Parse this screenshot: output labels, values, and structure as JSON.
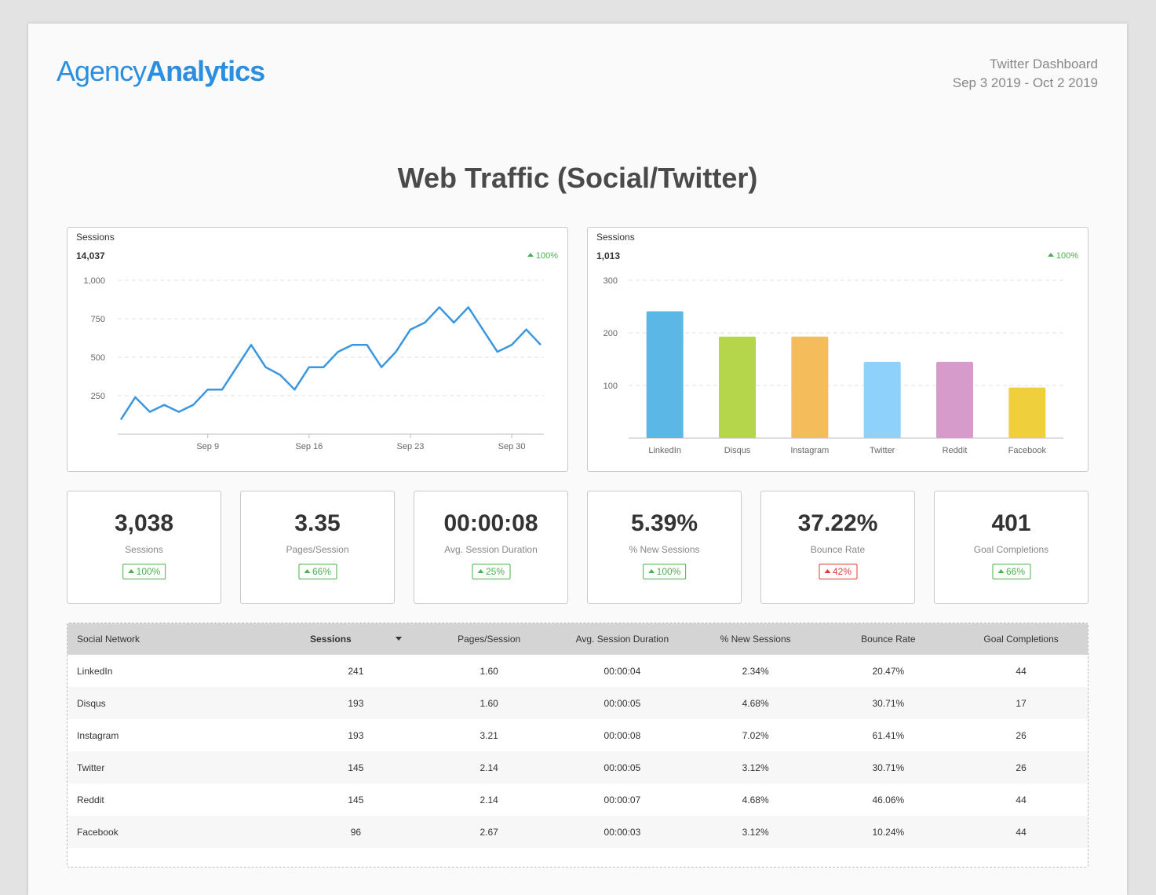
{
  "header": {
    "logo_part1": "Agency",
    "logo_part2": "Analytics",
    "dashboard_name": "Twitter Dashboard",
    "date_range": "Sep 3 2019 - Oct 2 2019"
  },
  "page_title": "Web Traffic (Social/Twitter)",
  "line_card": {
    "label": "Sessions",
    "total": "14,037",
    "change": "100%"
  },
  "bar_card": {
    "label": "Sessions",
    "total": "1,013",
    "change": "100%"
  },
  "chart_data": [
    {
      "type": "line",
      "x": [
        "Sep 3",
        "Sep 4",
        "Sep 5",
        "Sep 6",
        "Sep 7",
        "Sep 8",
        "Sep 9",
        "Sep 10",
        "Sep 11",
        "Sep 12",
        "Sep 13",
        "Sep 14",
        "Sep 15",
        "Sep 16",
        "Sep 17",
        "Sep 18",
        "Sep 19",
        "Sep 20",
        "Sep 21",
        "Sep 22",
        "Sep 23",
        "Sep 24",
        "Sep 25",
        "Sep 26",
        "Sep 27",
        "Sep 28",
        "Sep 29",
        "Sep 30",
        "Oct 1",
        "Oct 2"
      ],
      "x_ticks": [
        "Sep 9",
        "Sep 16",
        "Sep 23",
        "Sep 30"
      ],
      "series": [
        {
          "values": [
            95,
            240,
            145,
            190,
            145,
            190,
            290,
            290,
            435,
            580,
            435,
            385,
            290,
            435,
            435,
            535,
            580,
            580,
            435,
            535,
            680,
            725,
            825,
            725,
            825,
            680,
            535,
            580,
            680,
            580
          ]
        }
      ],
      "y_ticks": [
        "1,000",
        "750",
        "500",
        "250"
      ],
      "ylim": [
        0,
        1000
      ],
      "grid": true,
      "color": "#3a97dd"
    },
    {
      "type": "bar",
      "categories": [
        "LinkedIn",
        "Disqus",
        "Instagram",
        "Twitter",
        "Reddit",
        "Facebook"
      ],
      "values": [
        241,
        193,
        193,
        145,
        145,
        96
      ],
      "colors": [
        "#5bb8e6",
        "#b5d64b",
        "#f5bc5c",
        "#8ed2fb",
        "#d69bcb",
        "#f0cf3c"
      ],
      "y_ticks": [
        "300",
        "200",
        "100"
      ],
      "ylim": [
        0,
        300
      ],
      "grid": true
    }
  ],
  "kpis": [
    {
      "value": "3,038",
      "label": "Sessions",
      "change": "100%",
      "trend": "pos"
    },
    {
      "value": "3.35",
      "label": "Pages/Session",
      "change": "66%",
      "trend": "pos"
    },
    {
      "value": "00:00:08",
      "label": "Avg. Session Duration",
      "change": "25%",
      "trend": "pos"
    },
    {
      "value": "5.39%",
      "label": "% New Sessions",
      "change": "100%",
      "trend": "pos"
    },
    {
      "value": "37.22%",
      "label": "Bounce Rate",
      "change": "42%",
      "trend": "neg"
    },
    {
      "value": "401",
      "label": "Goal Completions",
      "change": "66%",
      "trend": "pos"
    }
  ],
  "table": {
    "columns": [
      "Social Network",
      "Sessions",
      "Pages/Session",
      "Avg. Session Duration",
      "% New Sessions",
      "Bounce Rate",
      "Goal Completions"
    ],
    "rows": [
      [
        "LinkedIn",
        "241",
        "1.60",
        "00:00:04",
        "2.34%",
        "20.47%",
        "44"
      ],
      [
        "Disqus",
        "193",
        "1.60",
        "00:00:05",
        "4.68%",
        "30.71%",
        "17"
      ],
      [
        "Instagram",
        "193",
        "3.21",
        "00:00:08",
        "7.02%",
        "61.41%",
        "26"
      ],
      [
        "Twitter",
        "145",
        "2.14",
        "00:00:05",
        "3.12%",
        "30.71%",
        "26"
      ],
      [
        "Reddit",
        "145",
        "2.14",
        "00:00:07",
        "4.68%",
        "46.06%",
        "44"
      ],
      [
        "Facebook",
        "96",
        "2.67",
        "00:00:03",
        "3.12%",
        "10.24%",
        "44"
      ]
    ]
  }
}
